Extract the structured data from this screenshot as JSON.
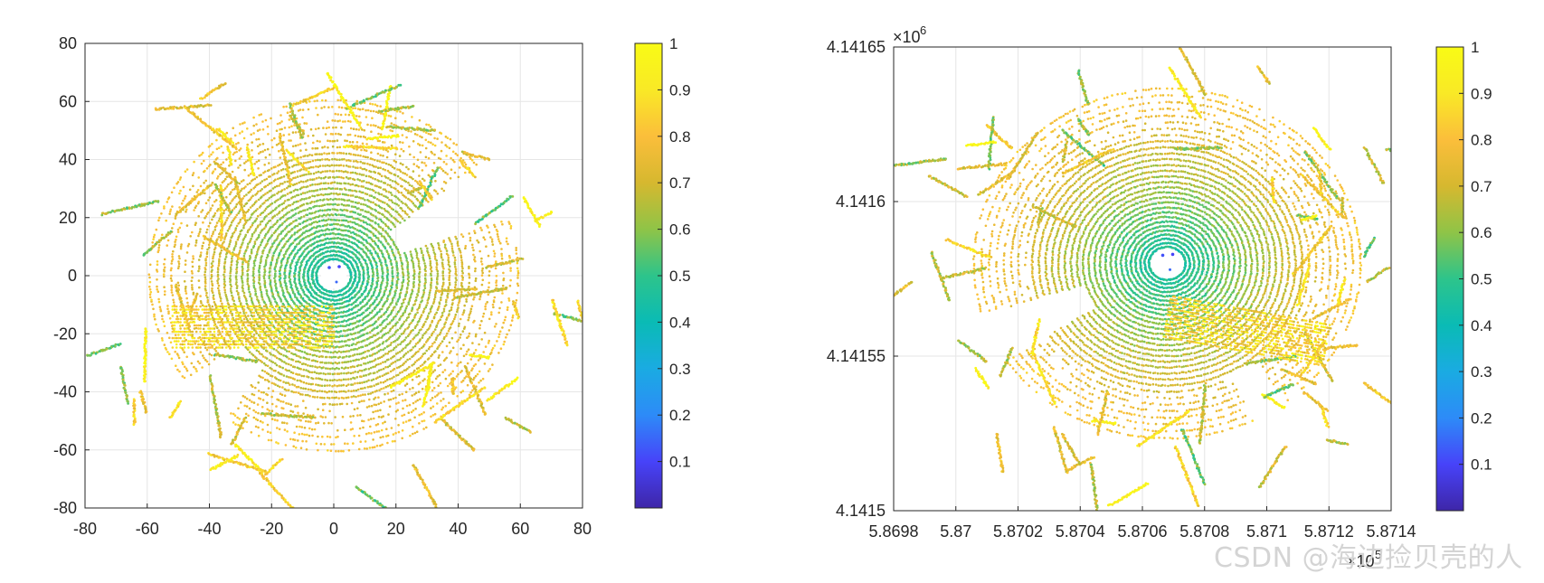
{
  "watermark": "CSDN @海边捡贝壳的人",
  "colorbar_ticks": [
    "0.1",
    "0.2",
    "0.3",
    "0.4",
    "0.5",
    "0.6",
    "0.7",
    "0.8",
    "0.9",
    "1"
  ],
  "colormap": [
    "#3e26a8",
    "#4743f9",
    "#2d8bf8",
    "#1aabe2",
    "#0abbb5",
    "#2dc48b",
    "#8fc447",
    "#d6b82f",
    "#fbbe3b",
    "#f9e926",
    "#f9fb15"
  ],
  "chart_data": [
    {
      "type": "scatter",
      "title": "",
      "xlabel": "",
      "ylabel": "",
      "xlim": [
        -80,
        80
      ],
      "ylim": [
        -80,
        80
      ],
      "xticks": [
        -80,
        -60,
        -40,
        -20,
        0,
        20,
        40,
        60,
        80
      ],
      "yticks": [
        -80,
        -60,
        -40,
        -20,
        0,
        20,
        40,
        60,
        80
      ],
      "xtick_labels": [
        "-80",
        "-60",
        "-40",
        "-20",
        "0",
        "20",
        "40",
        "60",
        "80"
      ],
      "ytick_labels": [
        "-80",
        "-60",
        "-40",
        "-20",
        "0",
        "20",
        "40",
        "60",
        "80"
      ],
      "center": [
        0,
        0
      ],
      "x_exponent": "",
      "y_exponent": "",
      "grid": true,
      "colorbar": {
        "range": [
          0,
          1
        ],
        "ticks": [
          0.1,
          0.2,
          0.3,
          0.4,
          0.5,
          0.6,
          0.7,
          0.8,
          0.9,
          1
        ]
      }
    },
    {
      "type": "scatter",
      "title": "",
      "xlabel": "",
      "ylabel": "",
      "xlim": [
        586980,
        587140
      ],
      "ylim": [
        4141500,
        4141650
      ],
      "xticks": [
        586980,
        587000,
        587020,
        587040,
        587060,
        587080,
        587100,
        587120,
        587140
      ],
      "yticks": [
        4141500,
        4141550,
        4141600,
        4141650
      ],
      "xtick_labels": [
        "5.8698",
        "5.87",
        "5.8702",
        "5.8704",
        "5.8706",
        "5.8708",
        "5.871",
        "5.8712",
        "5.8714"
      ],
      "ytick_labels": [
        "4.1415",
        "4.14155",
        "4.1416",
        "4.14165"
      ],
      "center": [
        587068,
        4141580
      ],
      "x_exponent": "×10",
      "x_exponent_power": "5",
      "y_exponent": "×10",
      "y_exponent_power": "6",
      "grid": true,
      "colorbar": {
        "range": [
          0,
          1
        ],
        "ticks": [
          0.1,
          0.2,
          0.3,
          0.4,
          0.5,
          0.6,
          0.7,
          0.8,
          0.9,
          1
        ]
      }
    }
  ]
}
